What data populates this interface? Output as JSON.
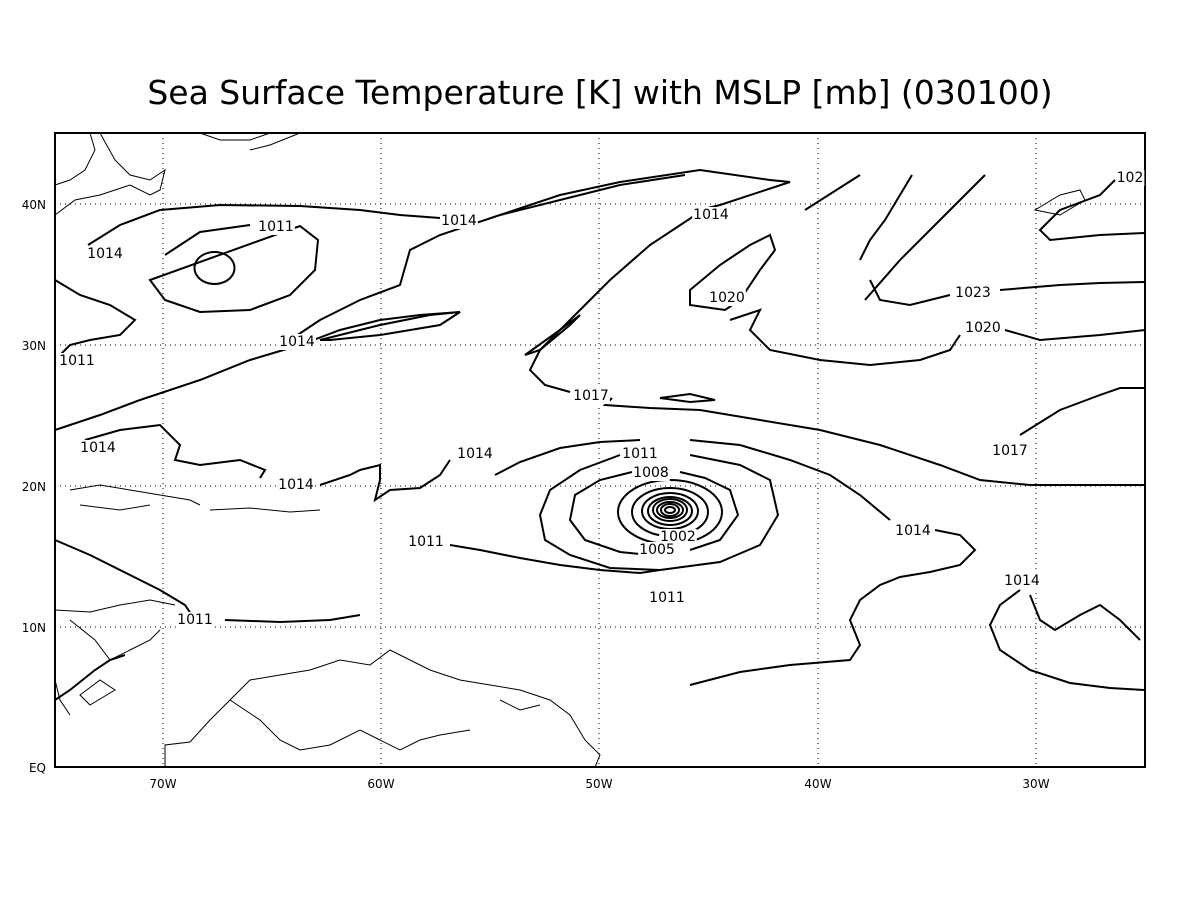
{
  "title": "Sea Surface Temperature [K] with MSLP [mb] (030100)",
  "lon_labels": [
    "70W",
    "60W",
    "50W",
    "40W",
    "30W"
  ],
  "lat_labels": [
    "EQ",
    "10N",
    "20N",
    "30N",
    "40N"
  ],
  "contour_labels": [
    "1014",
    "1011",
    "1014",
    "1014",
    "102",
    "1020",
    "1023",
    "1014",
    "1020",
    "1011",
    "1017",
    "1014",
    "1014",
    "1011",
    "1008",
    "1017",
    "1014",
    "1014",
    "1002",
    "1005",
    "1011",
    "1011",
    "1014",
    "1011"
  ]
}
